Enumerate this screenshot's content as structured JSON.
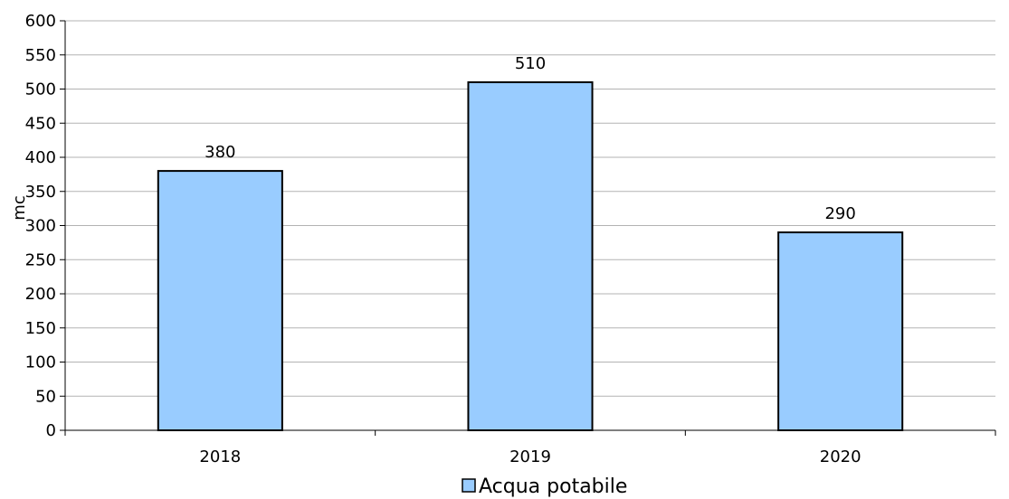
{
  "chart_data": {
    "type": "bar",
    "categories": [
      "2018",
      "2019",
      "2020"
    ],
    "series": [
      {
        "name": "Acqua potabile",
        "values": [
          380,
          510,
          290
        ],
        "color": "#99ccff"
      }
    ],
    "ylabel": "mc",
    "ylim": [
      0,
      600
    ],
    "yticks": [
      "0",
      "50",
      "100",
      "150",
      "200",
      "250",
      "300",
      "350",
      "400",
      "450",
      "500",
      "550",
      "600"
    ],
    "grid": true,
    "legend": "bottom-center",
    "data_labels": [
      "380",
      "510",
      "290"
    ]
  }
}
